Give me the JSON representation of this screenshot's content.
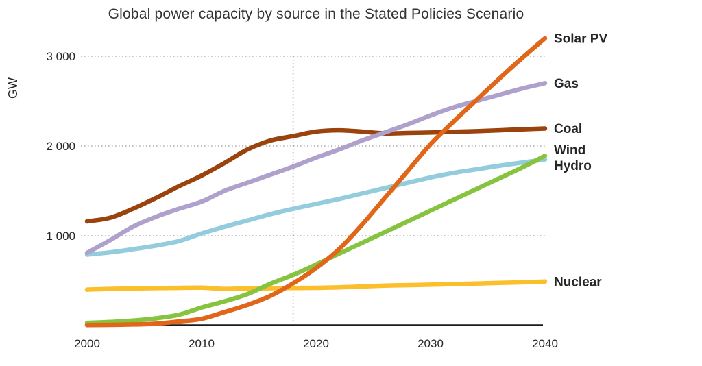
{
  "page": {
    "background": "#ffffff"
  },
  "chart_data": {
    "type": "line",
    "title": "Global power capacity by source in the Stated Policies Scenario",
    "ylabel": "GW",
    "xlabel": "",
    "xlim": [
      2000,
      2040
    ],
    "ylim": [
      0,
      3300
    ],
    "grid": "horizontal dotted gridlines at 1000, 2000, 3000; vertical dotted divider at 2018; no left axis line; solid black bottom axis",
    "legend_position": "right, colored labels at line ends",
    "divider_year": 2018,
    "x_ticks": [
      {
        "value": 2000,
        "label": "2000"
      },
      {
        "value": 2010,
        "label": "2010"
      },
      {
        "value": 2020,
        "label": "2020"
      },
      {
        "value": 2030,
        "label": "2030"
      },
      {
        "value": 2040,
        "label": "2040"
      }
    ],
    "y_ticks": [
      {
        "value": 1000,
        "label": "1 000"
      },
      {
        "value": 2000,
        "label": "2 000"
      },
      {
        "value": 3000,
        "label": "3 000"
      }
    ],
    "x": [
      2000,
      2002,
      2004,
      2006,
      2008,
      2010,
      2012,
      2014,
      2016,
      2018,
      2020,
      2022,
      2024,
      2026,
      2028,
      2030,
      2032,
      2034,
      2036,
      2038,
      2040
    ],
    "series": [
      {
        "name": "Solar PV",
        "color": "#E0661A",
        "values": [
          5,
          8,
          12,
          20,
          45,
          75,
          150,
          230,
          330,
          470,
          640,
          850,
          1120,
          1420,
          1720,
          2020,
          2270,
          2510,
          2750,
          2980,
          3200
        ]
      },
      {
        "name": "Gas",
        "color": "#AFA1CB",
        "values": [
          810,
          950,
          1100,
          1210,
          1300,
          1380,
          1500,
          1590,
          1680,
          1770,
          1870,
          1960,
          2060,
          2150,
          2240,
          2340,
          2430,
          2500,
          2570,
          2640,
          2700
        ]
      },
      {
        "name": "Coal",
        "color": "#9A430C",
        "values": [
          1160,
          1200,
          1300,
          1420,
          1550,
          1670,
          1810,
          1960,
          2060,
          2110,
          2160,
          2175,
          2160,
          2140,
          2145,
          2150,
          2158,
          2165,
          2175,
          2185,
          2195
        ]
      },
      {
        "name": "Wind",
        "color": "#86C440",
        "values": [
          30,
          40,
          55,
          80,
          120,
          200,
          270,
          350,
          465,
          565,
          680,
          800,
          920,
          1040,
          1160,
          1280,
          1400,
          1520,
          1640,
          1760,
          1890
        ]
      },
      {
        "name": "Hydro",
        "color": "#93CDDD",
        "values": [
          790,
          815,
          850,
          890,
          940,
          1025,
          1100,
          1170,
          1240,
          1300,
          1355,
          1410,
          1470,
          1530,
          1590,
          1650,
          1700,
          1740,
          1780,
          1815,
          1850
        ]
      },
      {
        "name": "Nuclear",
        "color": "#FBBF2C",
        "values": [
          400,
          408,
          413,
          417,
          419,
          421,
          408,
          412,
          415,
          418,
          420,
          425,
          435,
          445,
          450,
          455,
          462,
          468,
          475,
          482,
          490
        ]
      }
    ],
    "colors": {
      "grid": "#ADADAD",
      "divider": "#A6A6A6",
      "axis": "#1A1A1A",
      "title_text": "#333333",
      "tick_text": "#262626"
    }
  }
}
